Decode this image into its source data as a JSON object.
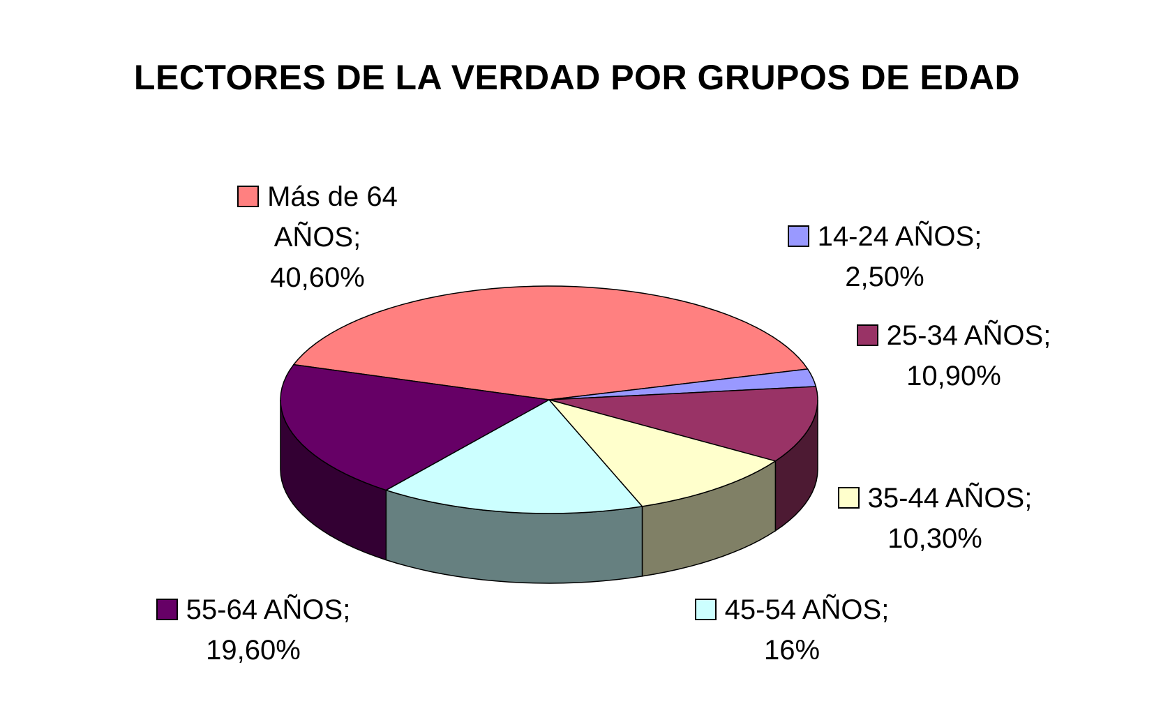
{
  "chart_data": {
    "type": "pie",
    "three_d": true,
    "title": "LECTORES DE LA VERDAD POR GRUPOS DE EDAD",
    "unit": "%",
    "slices": [
      {
        "label": "Más de 64 AÑOS",
        "value": 40.6,
        "value_text": "40,60%",
        "color": "#ff8080",
        "label_lines": [
          "Más de 64",
          "AÑOS;",
          "40,60%"
        ]
      },
      {
        "label": "14-24 AÑOS",
        "value": 2.5,
        "value_text": "2,50%",
        "color": "#9999ff",
        "label_lines": [
          "14-24 AÑOS;",
          "2,50%"
        ]
      },
      {
        "label": "25-34 AÑOS",
        "value": 10.9,
        "value_text": "10,90%",
        "color": "#993366",
        "label_lines": [
          "25-34 AÑOS;",
          "10,90%"
        ]
      },
      {
        "label": "35-44 AÑOS",
        "value": 10.3,
        "value_text": "10,30%",
        "color": "#ffffcc",
        "label_lines": [
          "35-44 AÑOS;",
          "10,30%"
        ]
      },
      {
        "label": "45-54 AÑOS",
        "value": 16,
        "value_text": "16%",
        "color": "#ccffff",
        "label_lines": [
          "45-54 AÑOS;",
          "16%"
        ]
      },
      {
        "label": "55-64 AÑOS",
        "value": 19.6,
        "value_text": "19,60%",
        "color": "#660066",
        "label_lines": [
          "55-64 AÑOS;",
          "19,60%"
        ]
      }
    ]
  }
}
